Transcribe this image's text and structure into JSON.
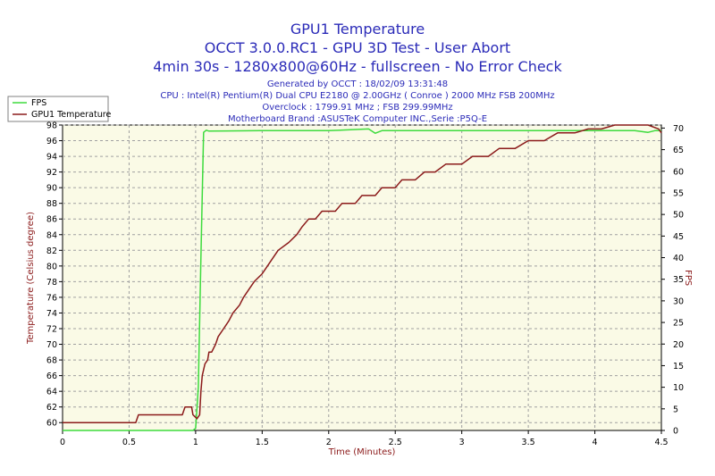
{
  "chart_data": {
    "type": "line",
    "title": "GPU1 Temperature",
    "subtitle_lines": [
      "OCCT 3.0.0.RC1 - GPU 3D Test - User Abort",
      "4min 30s - 1280x800@60Hz - fullscreen - No Error Check"
    ],
    "info_lines": [
      "Generated by OCCT : 18/02/09 13:31:48",
      "CPU : Intel(R) Pentium(R) Dual CPU E2180 @ 2.00GHz ( Conroe ) 2000 MHz FSB 200MHz",
      "Overclock : 1799.91 MHz ; FSB 299.99MHz",
      "Motherboard Brand :ASUSTeK Computer INC.,Serie :P5Q-E"
    ],
    "xlabel": "Time (Minutes)",
    "ylabel": "Temperature (Celsius degree)",
    "y2label": "FPS",
    "xlim": [
      0,
      4.5
    ],
    "ylim": [
      59,
      98
    ],
    "y2lim": [
      0,
      70.7
    ],
    "x_ticks": [
      "0",
      "0.5",
      "1",
      "1.5",
      "2",
      "2.5",
      "3",
      "3.5",
      "4",
      "4.5"
    ],
    "y_ticks": [
      "60",
      "62",
      "64",
      "66",
      "68",
      "70",
      "72",
      "74",
      "76",
      "78",
      "80",
      "82",
      "84",
      "86",
      "88",
      "90",
      "92",
      "94",
      "96",
      "98"
    ],
    "y2_ticks": [
      "0",
      "5",
      "10",
      "15",
      "20",
      "25",
      "30",
      "35",
      "40",
      "45",
      "50",
      "55",
      "60",
      "65",
      "70"
    ],
    "grid": true,
    "legend_position": "top-left",
    "colors": {
      "fps": "#3ddb3d",
      "temperature": "#8b1a1a",
      "plot_bg": "#fafae6",
      "title": "#2b2bb8",
      "axis_label": "#8b1a1a"
    },
    "series": [
      {
        "name": "FPS",
        "axis": "right",
        "x": [
          0,
          0.98,
          1.0,
          1.02,
          1.04,
          1.06,
          1.08,
          1.1,
          1.5,
          2.0,
          2.3,
          2.35,
          2.4,
          2.5,
          3.0,
          3.5,
          4.0,
          4.3,
          4.4,
          4.45,
          4.5
        ],
        "values": [
          0,
          0,
          0.5,
          10,
          40,
          69.0,
          69.5,
          69.3,
          69.4,
          69.4,
          69.8,
          68.8,
          69.4,
          69.4,
          69.4,
          69.4,
          69.4,
          69.4,
          69.0,
          69.4,
          69.4
        ]
      },
      {
        "name": "GPU1 Temperature",
        "axis": "left",
        "x": [
          0,
          0.55,
          0.57,
          0.9,
          0.92,
          0.97,
          0.98,
          1.01,
          1.03,
          1.04,
          1.05,
          1.07,
          1.09,
          1.1,
          1.12,
          1.15,
          1.17,
          1.21,
          1.25,
          1.28,
          1.33,
          1.36,
          1.4,
          1.44,
          1.5,
          1.54,
          1.58,
          1.62,
          1.7,
          1.76,
          1.8,
          1.85,
          1.9,
          1.95,
          2.05,
          2.1,
          2.2,
          2.25,
          2.35,
          2.4,
          2.5,
          2.55,
          2.65,
          2.72,
          2.8,
          2.88,
          3.0,
          3.08,
          3.2,
          3.28,
          3.4,
          3.5,
          3.62,
          3.72,
          3.85,
          3.95,
          4.05,
          4.15,
          4.25,
          4.4,
          4.48,
          4.5
        ],
        "values": [
          60,
          60,
          61,
          61,
          62,
          62,
          61,
          60.5,
          61,
          64,
          66,
          67.5,
          68,
          69,
          69,
          70,
          71,
          72,
          73,
          74,
          75,
          76,
          77,
          78,
          79,
          80,
          81,
          82,
          83,
          84,
          85,
          86,
          86,
          87,
          87,
          88,
          88,
          89,
          89,
          90,
          90,
          91,
          91,
          92,
          92,
          93,
          93,
          94,
          94,
          95,
          95,
          96,
          96,
          97,
          97,
          97.5,
          97.5,
          98,
          98,
          98,
          97.5,
          97
        ]
      }
    ]
  }
}
